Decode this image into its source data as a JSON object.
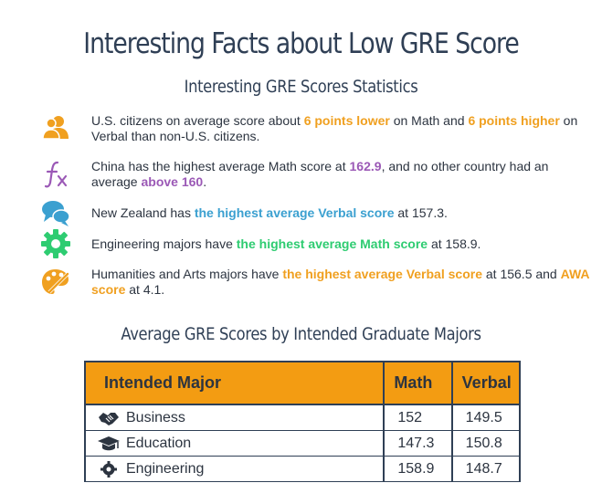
{
  "header": {
    "title": "Interesting Facts about Low GRE Score",
    "subtitle": "Interesting GRE Scores Statistics"
  },
  "facts": [
    {
      "icon": "users-icon",
      "icon_color": "#f0a020",
      "parts": [
        {
          "text": "U.S. citizens on average score about ",
          "style": "plain"
        },
        {
          "text": "6 points lower",
          "style": "orange"
        },
        {
          "text": " on Math and ",
          "style": "plain"
        },
        {
          "text": "6 points higher",
          "style": "orange"
        },
        {
          "text": " on Verbal than non-U.S. citizens.",
          "style": "plain"
        }
      ]
    },
    {
      "icon": "function-icon",
      "icon_color": "#9b59b6",
      "parts": [
        {
          "text": "China has the highest average Math score at ",
          "style": "plain"
        },
        {
          "text": "162.9",
          "style": "purple"
        },
        {
          "text": ", and no other country had an average ",
          "style": "plain"
        },
        {
          "text": "above 160",
          "style": "purple"
        },
        {
          "text": ".",
          "style": "plain"
        }
      ]
    },
    {
      "icon": "chat-bubbles-icon",
      "icon_color": "#3ba0d0",
      "parts": [
        {
          "text": "New Zealand has ",
          "style": "plain"
        },
        {
          "text": "the highest average Verbal score",
          "style": "blue"
        },
        {
          "text": " at 157.3.",
          "style": "plain"
        }
      ]
    },
    {
      "icon": "gear-icon",
      "icon_color": "#2ecc71",
      "parts": [
        {
          "text": "Engineering majors have ",
          "style": "plain"
        },
        {
          "text": "the highest average Math score",
          "style": "green"
        },
        {
          "text": " at 158.9.",
          "style": "plain"
        }
      ]
    },
    {
      "icon": "paint-palette-icon",
      "icon_color": "#f0a020",
      "parts": [
        {
          "text": "Humanities and Arts majors have ",
          "style": "plain"
        },
        {
          "text": "the highest average Verbal score",
          "style": "orange"
        },
        {
          "text": " at 156.5 and ",
          "style": "plain"
        },
        {
          "text": "AWA score",
          "style": "orange"
        },
        {
          "text": " at 4.1.",
          "style": "plain"
        }
      ]
    }
  ],
  "table": {
    "title": "Average GRE Scores by Intended Graduate Majors",
    "header_color": "#f39c12",
    "columns": [
      "Intended Major",
      "Math",
      "Verbal"
    ],
    "rows": [
      {
        "icon": "handshake-icon",
        "major": "Business",
        "math": "152",
        "verbal": "149.5"
      },
      {
        "icon": "graduation-cap-icon",
        "major": "Education",
        "math": "147.3",
        "verbal": "150.8"
      },
      {
        "icon": "gear-icon",
        "major": "Engineering",
        "math": "158.9",
        "verbal": "148.7"
      }
    ]
  }
}
